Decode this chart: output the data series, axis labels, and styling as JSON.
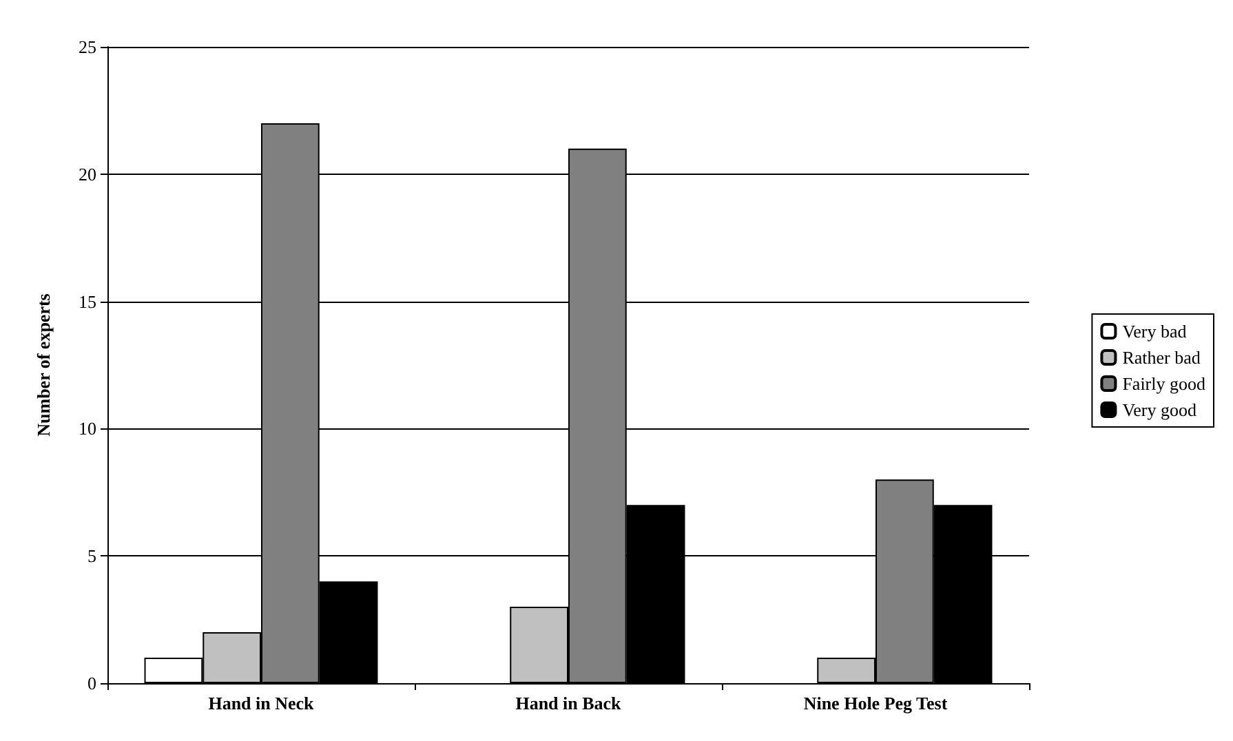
{
  "chart_data": {
    "type": "bar",
    "ylabel": "Number of experts",
    "categories": [
      "Hand in Neck",
      "Hand in Back",
      "Nine Hole Peg Test"
    ],
    "series": [
      {
        "name": "Very bad",
        "color": "#ffffff",
        "values": [
          1,
          null,
          null
        ]
      },
      {
        "name": "Rather bad",
        "color": "#c0c0c0",
        "values": [
          2,
          3,
          1
        ]
      },
      {
        "name": "Fairly good",
        "color": "#808080",
        "values": [
          22,
          21,
          8
        ]
      },
      {
        "name": "Very good",
        "color": "#000000",
        "values": [
          4,
          7,
          7
        ]
      }
    ],
    "ylim": [
      0,
      25
    ],
    "yticks": [
      0,
      5,
      10,
      15,
      20,
      25
    ],
    "grid": "y",
    "legend": "right"
  }
}
